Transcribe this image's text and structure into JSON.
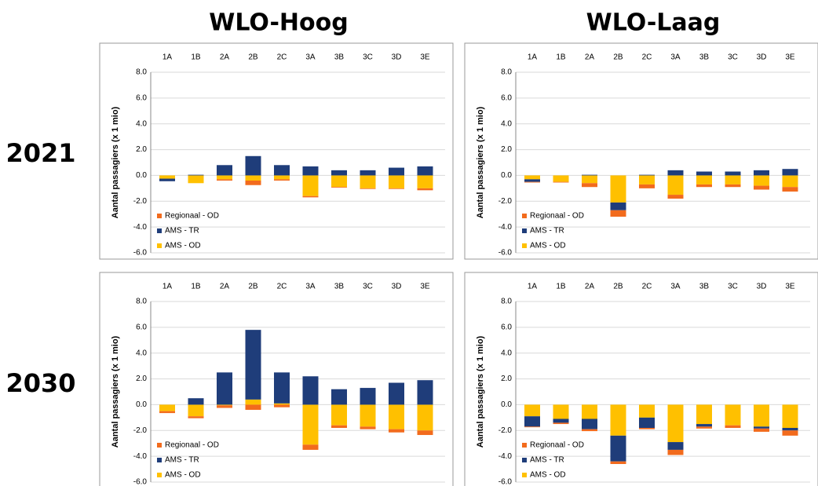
{
  "columns": [
    "WLO-Hoog",
    "WLO-Laag"
  ],
  "rows": [
    "2021",
    "2030"
  ],
  "chart_data": [
    {
      "type": "bar",
      "stacked": true,
      "ylabel": "Aantal passagiers (x 1 mio)",
      "categories": [
        "1A",
        "1B",
        "2A",
        "2B",
        "2C",
        "3A",
        "3B",
        "3C",
        "3D",
        "3E"
      ],
      "series": [
        {
          "name": "AMS - OD",
          "color": "#ffc000",
          "values": [
            -0.25,
            -0.6,
            -0.3,
            -0.4,
            -0.3,
            -1.6,
            -0.9,
            -1.0,
            -1.0,
            -1.0
          ]
        },
        {
          "name": "AMS - TR",
          "color": "#1f3d7a",
          "values": [
            -0.2,
            0.05,
            0.8,
            1.5,
            0.8,
            0.7,
            0.4,
            0.4,
            0.6,
            0.7
          ]
        },
        {
          "name": "Regionaal - OD",
          "color": "#f26b1d",
          "values": [
            0,
            0,
            -0.1,
            -0.35,
            -0.1,
            -0.1,
            -0.05,
            -0.05,
            -0.05,
            -0.15
          ]
        }
      ],
      "ylim": [
        -6,
        8
      ],
      "yticks": [
        {
          "value": -6,
          "label": "-6.0"
        },
        {
          "value": -4,
          "label": "-4.0"
        },
        {
          "value": -2,
          "label": "-2.0"
        },
        {
          "value": 0,
          "label": "0.0"
        },
        {
          "value": 2,
          "label": "2.0"
        },
        {
          "value": 4,
          "label": "4.0"
        },
        {
          "value": 6,
          "label": "6.0"
        },
        {
          "value": 8,
          "label": "8.0"
        }
      ],
      "grid": true,
      "legend": "lower left"
    },
    {
      "type": "bar",
      "stacked": true,
      "ylabel": "Aantal passagiers (x 1 mio)",
      "categories": [
        "1A",
        "1B",
        "2A",
        "2B",
        "2C",
        "3A",
        "3B",
        "3C",
        "3D",
        "3E"
      ],
      "series": [
        {
          "name": "AMS - OD",
          "color": "#ffc000",
          "values": [
            -0.3,
            -0.5,
            -0.6,
            -2.1,
            -0.7,
            -1.5,
            -0.7,
            -0.7,
            -0.8,
            -0.9
          ]
        },
        {
          "name": "AMS - TR",
          "color": "#1f3d7a",
          "values": [
            -0.2,
            0,
            0.05,
            -0.6,
            0.05,
            0.4,
            0.3,
            0.3,
            0.4,
            0.5
          ]
        },
        {
          "name": "Regionaal - OD",
          "color": "#f26b1d",
          "values": [
            -0.05,
            -0.05,
            -0.3,
            -0.5,
            -0.3,
            -0.3,
            -0.2,
            -0.2,
            -0.3,
            -0.35
          ]
        }
      ],
      "ylim": [
        -6,
        8
      ],
      "yticks": [
        {
          "value": -6,
          "label": "-6.0"
        },
        {
          "value": -4,
          "label": "-4.0"
        },
        {
          "value": -2,
          "label": "-2.0"
        },
        {
          "value": 0,
          "label": "0.0"
        },
        {
          "value": 2,
          "label": "2.0"
        },
        {
          "value": 4,
          "label": "4.0"
        },
        {
          "value": 6,
          "label": "6.0"
        },
        {
          "value": 8,
          "label": "8.0"
        }
      ],
      "grid": true,
      "legend": "lower left"
    },
    {
      "type": "bar",
      "stacked": true,
      "ylabel": "Aantal passagiers (x 1 mio)",
      "categories": [
        "1A",
        "1B",
        "2A",
        "2B",
        "2C",
        "3A",
        "3B",
        "3C",
        "3D",
        "3E"
      ],
      "series": [
        {
          "name": "AMS - OD",
          "color": "#ffc000",
          "values": [
            -0.5,
            -0.9,
            -0.05,
            0.4,
            0.1,
            -3.1,
            -1.6,
            -1.7,
            -1.9,
            -2.0
          ]
        },
        {
          "name": "AMS - TR",
          "color": "#1f3d7a",
          "values": [
            0,
            0.5,
            2.5,
            5.4,
            2.4,
            2.2,
            1.2,
            1.3,
            1.7,
            1.9
          ]
        },
        {
          "name": "Regionaal - OD",
          "color": "#f26b1d",
          "values": [
            -0.15,
            -0.15,
            -0.2,
            -0.4,
            -0.2,
            -0.4,
            -0.2,
            -0.2,
            -0.25,
            -0.35
          ]
        }
      ],
      "ylim": [
        -6,
        8
      ],
      "yticks": [
        {
          "value": -6,
          "label": "-6.0"
        },
        {
          "value": -4,
          "label": "-4.0"
        },
        {
          "value": -2,
          "label": "-2.0"
        },
        {
          "value": 0,
          "label": "0.0"
        },
        {
          "value": 2,
          "label": "2.0"
        },
        {
          "value": 4,
          "label": "4.0"
        },
        {
          "value": 6,
          "label": "6.0"
        },
        {
          "value": 8,
          "label": "8.0"
        }
      ],
      "grid": true,
      "legend": "lower left"
    },
    {
      "type": "bar",
      "stacked": true,
      "ylabel": "Aantal passagiers (x 1 mio)",
      "categories": [
        "1A",
        "1B",
        "2A",
        "2B",
        "2C",
        "3A",
        "3B",
        "3C",
        "3D",
        "3E"
      ],
      "series": [
        {
          "name": "AMS - OD",
          "color": "#ffc000",
          "values": [
            -0.9,
            -1.1,
            -1.1,
            -2.4,
            -1.0,
            -2.9,
            -1.5,
            -1.6,
            -1.7,
            -1.8
          ]
        },
        {
          "name": "AMS - TR",
          "color": "#1f3d7a",
          "values": [
            -0.8,
            -0.3,
            -0.8,
            -2.0,
            -0.8,
            -0.6,
            -0.2,
            0,
            -0.15,
            -0.2
          ]
        },
        {
          "name": "Regionaal - OD",
          "color": "#f26b1d",
          "values": [
            -0.05,
            -0.1,
            -0.15,
            -0.2,
            -0.1,
            -0.4,
            -0.15,
            -0.2,
            -0.25,
            -0.4
          ]
        }
      ],
      "ylim": [
        -6,
        8
      ],
      "yticks": [
        {
          "value": -6,
          "label": "-6.0"
        },
        {
          "value": -4,
          "label": "-4.0"
        },
        {
          "value": -2,
          "label": "-2.0"
        },
        {
          "value": 0,
          "label": "0.0"
        },
        {
          "value": 2,
          "label": "2.0"
        },
        {
          "value": 4,
          "label": "4.0"
        },
        {
          "value": 6,
          "label": "6.0"
        },
        {
          "value": 8,
          "label": "8.0"
        }
      ],
      "grid": true,
      "legend": "lower left"
    }
  ]
}
